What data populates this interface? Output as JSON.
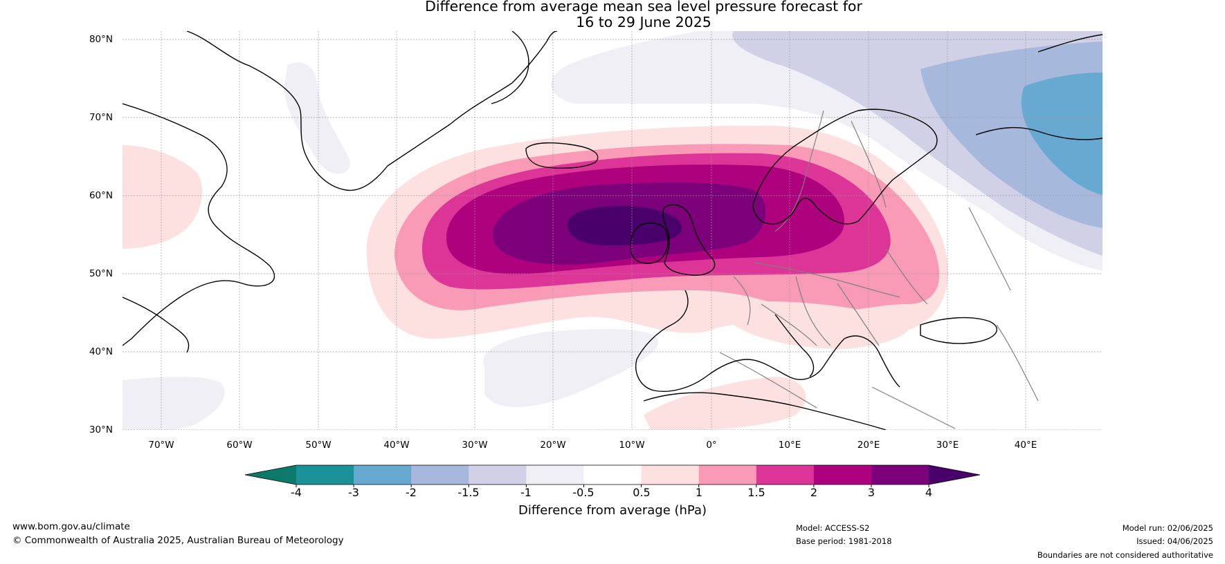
{
  "title": {
    "line1": "Difference from average mean sea level pressure forecast for",
    "line2": "16 to 29 June 2025"
  },
  "map": {
    "lon_range": [
      -75,
      50
    ],
    "lat_range": [
      30,
      81
    ],
    "lat_labels": [
      "30°N",
      "40°N",
      "50°N",
      "60°N",
      "70°N",
      "80°N"
    ],
    "lon_labels": [
      "70°W",
      "60°W",
      "50°W",
      "40°W",
      "30°W",
      "20°W",
      "10°W",
      "0°",
      "10°E",
      "20°E",
      "30°E",
      "40°E"
    ],
    "anomaly_maximum_region": "centred west of Ireland near 55°N 12°W, above 4 hPa",
    "coastline_color": "#000000",
    "border_color": "#808080"
  },
  "colorbar": {
    "tick_labels": [
      "-4",
      "-3",
      "-2",
      "-1.5",
      "-1",
      "-0.5",
      "0.5",
      "1",
      "1.5",
      "2",
      "3",
      "4"
    ],
    "colors": [
      "#0b7a6a",
      "#1a9297",
      "#67a9d0",
      "#a6b8dc",
      "#d0d1e6",
      "#f1eff6",
      "#ffffff",
      "#fde0e0",
      "#f99ab6",
      "#dd3497",
      "#ad017e",
      "#7b0079",
      "#49006a"
    ],
    "label": "Difference from average (hPa)"
  },
  "footer": {
    "url": "www.bom.gov.au/climate",
    "copyright": "© Commonwealth of Australia 2025, Australian Bureau of Meteorology",
    "model": "Model: ACCESS-S2",
    "base_period": "Base period: 1981-2018",
    "model_run": "Model run: 02/06/2025",
    "issued": "Issued: 04/06/2025",
    "disclaimer": "Boundaries are not considered authoritative"
  }
}
